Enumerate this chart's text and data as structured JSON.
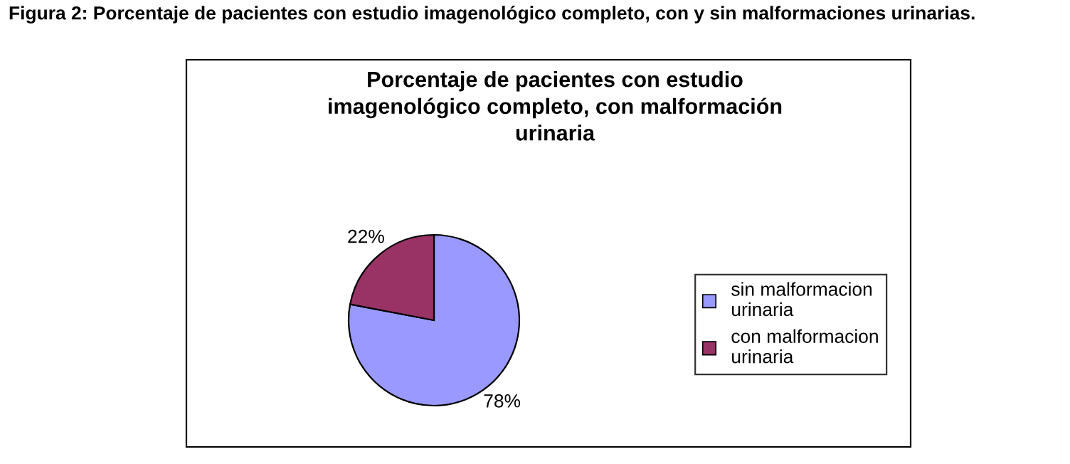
{
  "chart_data": {
    "type": "pie",
    "title": "Porcentaje de pacientes con estudio\nimagenológico completo, con malformación\nurinaria",
    "categories": [
      "sin malformacion\nurinaria",
      "con malformacion\nurinaria"
    ],
    "values": [
      78,
      22
    ],
    "colors": [
      "#9999ff",
      "#993366"
    ],
    "value_labels": [
      "78%",
      "22%"
    ],
    "legend": "right",
    "annotations": [
      "Figura 2: Porcentaje de pacientes con estudio imagenológico completo, con y sin malformaciones urinarias."
    ]
  }
}
